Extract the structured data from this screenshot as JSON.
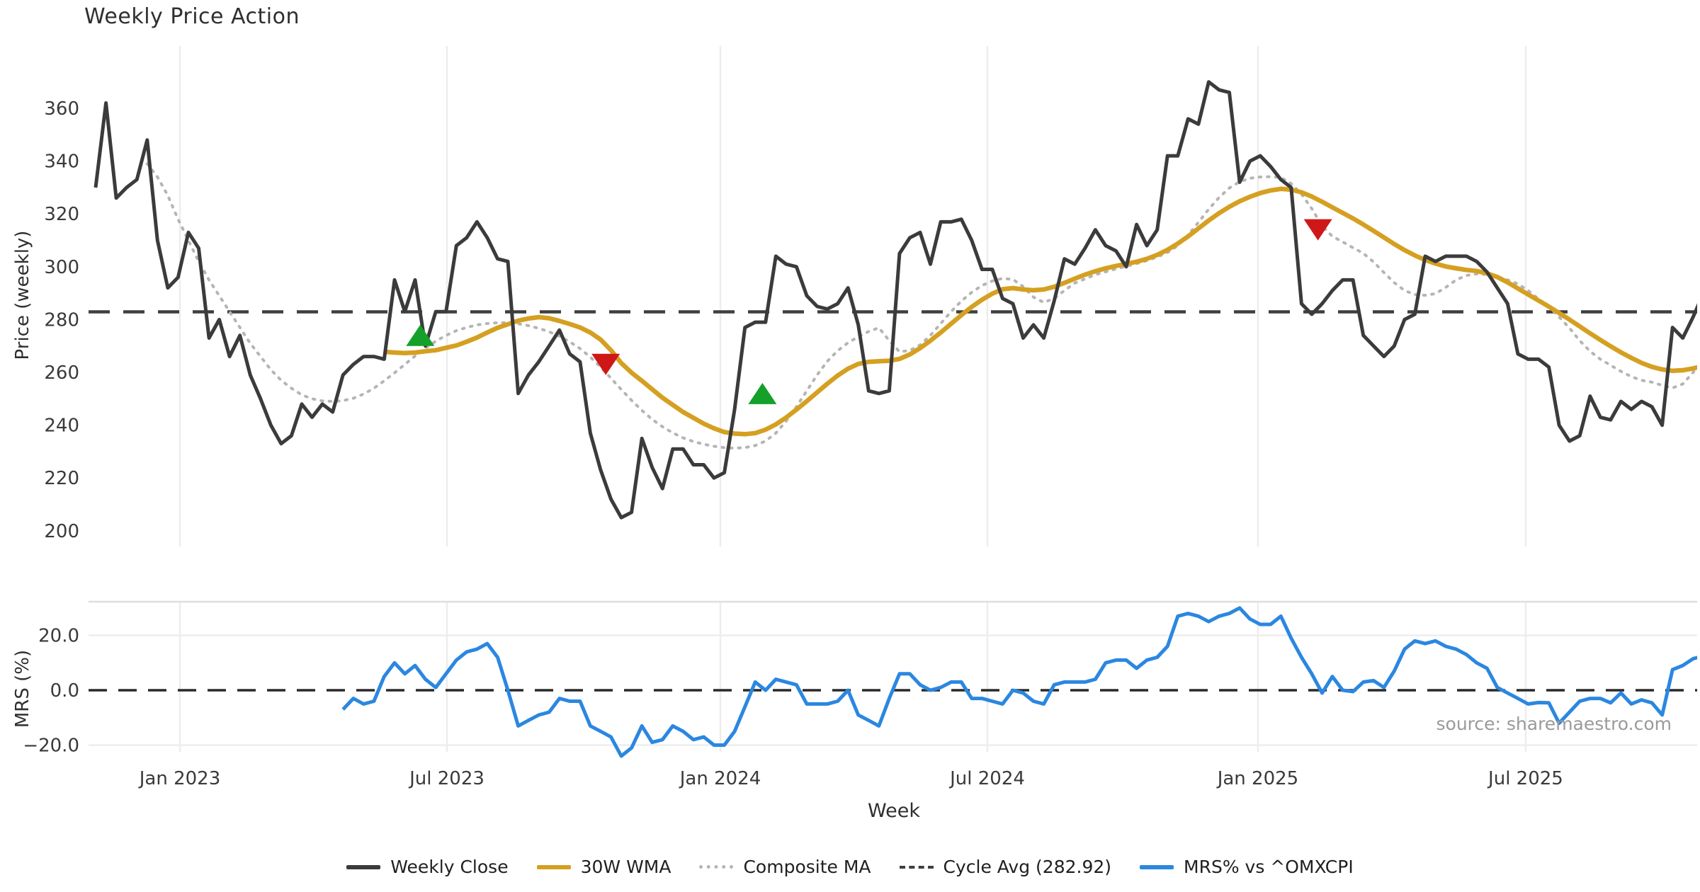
{
  "title": "Weekly Price Action",
  "source_text": "source: sharemaestro.com",
  "colors": {
    "close": "#3b3b3b",
    "wma": "#d5a021",
    "composite": "#b5b5b5",
    "cycle": "#3f3f3f",
    "mrs": "#2b87e0",
    "buy": "#15a02a",
    "sell": "#cf1717",
    "grid": "#ededed",
    "panel_border": "#dedede",
    "tick_text": "#3a3a3a",
    "zero_line": "#2a2a2a"
  },
  "legend": [
    {
      "label": "Weekly Close",
      "color": "#3b3b3b",
      "style": "solid"
    },
    {
      "label": "30W WMA",
      "color": "#d5a021",
      "style": "solid"
    },
    {
      "label": "Composite MA",
      "color": "#b5b5b5",
      "style": "dotted"
    },
    {
      "label": "Cycle Avg (282.92)",
      "color": "#3f3f3f",
      "style": "dashed"
    },
    {
      "label": "MRS% vs ^OMXCPI",
      "color": "#2b87e0",
      "style": "solid"
    }
  ],
  "chart_data": [
    {
      "type": "line",
      "panel": "price",
      "title": "Weekly Price Action",
      "ylabel": "Price (weekly)",
      "xlabel": "Week",
      "ylim": [
        194,
        383
      ],
      "grid": "vertical-only",
      "yticks": [
        360,
        340,
        320,
        300,
        280,
        260,
        240,
        220,
        200
      ],
      "xticks": [
        {
          "label": "Jan 2023",
          "week": 8.18
        },
        {
          "label": "Jul 2023",
          "week": 34.09
        },
        {
          "label": "Jan 2024",
          "week": 60.62
        },
        {
          "label": "Jul 2024",
          "week": 86.53
        },
        {
          "label": "Jan 2025",
          "week": 112.78
        },
        {
          "label": "Jul 2025",
          "week": 138.76
        }
      ],
      "cycle_avg": 282.92,
      "series": [
        {
          "name": "Weekly Close",
          "start_week": 0,
          "values": [
            330,
            362,
            326,
            330,
            333,
            348,
            310,
            292,
            296,
            313,
            307,
            273,
            280,
            266,
            274,
            259,
            250,
            240,
            233,
            236,
            248,
            243,
            248,
            245,
            259,
            263,
            266,
            266,
            265,
            295,
            283,
            295,
            270,
            283,
            283,
            308,
            311,
            317,
            311,
            303,
            302,
            252,
            259,
            264,
            270,
            276,
            267,
            264,
            237,
            223,
            212,
            205,
            207,
            235,
            224,
            216,
            231,
            231,
            225,
            225,
            220,
            222,
            246,
            277,
            279,
            279,
            304,
            301,
            300,
            289,
            285,
            284,
            286,
            292,
            278,
            253,
            252,
            253,
            305,
            311,
            313,
            301,
            317,
            317,
            318,
            310,
            299,
            299,
            288,
            286,
            273,
            278,
            273,
            287,
            303,
            301,
            307,
            314,
            308,
            306,
            300,
            316,
            308,
            314,
            342,
            342,
            356,
            354,
            370,
            367,
            366,
            332,
            340,
            342,
            338,
            333,
            330,
            286,
            282,
            286,
            291,
            295,
            295,
            274,
            270,
            266,
            270,
            280,
            282,
            304,
            302,
            304,
            304,
            304,
            302,
            298,
            292,
            286,
            267,
            265,
            265,
            262,
            240,
            234,
            236,
            251,
            243,
            242,
            249,
            246,
            249,
            247,
            240,
            277,
            273,
            281,
            290
          ]
        },
        {
          "name": "30W WMA",
          "start_week": 28,
          "values": [
            267.8,
            267.5,
            267.3,
            267.5,
            268,
            268.4,
            269.3,
            270.2,
            271.6,
            273.2,
            275.1,
            276.9,
            278.2,
            279.6,
            280.4,
            280.9,
            280.5,
            279.5,
            278.3,
            277,
            275.1,
            272.4,
            268.4,
            263.5,
            259.9,
            256.8,
            253.6,
            250.4,
            247.7,
            245,
            242.8,
            240.6,
            238.8,
            237.4,
            236.8,
            236.6,
            237,
            238.3,
            240.3,
            242.9,
            245.9,
            249.1,
            252.4,
            255.7,
            258.8,
            261.4,
            263.2,
            264,
            264.2,
            264.4,
            265.1,
            266.8,
            269.2,
            272,
            275.1,
            278.4,
            281.7,
            284.8,
            287.5,
            289.8,
            291.5,
            291.9,
            291.4,
            291.1,
            291.4,
            292.4,
            293.9,
            295.5,
            297,
            298.3,
            299.4,
            300.3,
            301.1,
            301.9,
            303,
            304.5,
            306.4,
            308.8,
            311.5,
            314.5,
            317.5,
            320.3,
            322.7,
            324.8,
            326.5,
            327.9,
            328.9,
            329.5,
            329.2,
            328.2,
            326.6,
            324.6,
            322.5,
            320.4,
            318.3,
            316,
            313.6,
            311.1,
            308.6,
            306.3,
            304.3,
            302.6,
            301.2,
            300.1,
            299.4,
            298.8,
            298.4,
            297.5,
            296.1,
            294.1,
            291.8,
            289.5,
            287.2,
            284.9,
            282.5,
            280,
            277.4,
            274.8,
            272.3,
            269.9,
            267.6,
            265.5,
            263.6,
            262.1,
            261.1,
            260.6,
            260.8,
            261.5,
            262.4
          ]
        },
        {
          "name": "Composite MA",
          "start_week": 5,
          "values": [
            339,
            334,
            327,
            318,
            310,
            302,
            295,
            289,
            283,
            277,
            271,
            266,
            261,
            257,
            254,
            251.5,
            250,
            249.2,
            249,
            249.3,
            250.2,
            251.8,
            254,
            256.8,
            259.8,
            263,
            266.2,
            269.2,
            271.8,
            274,
            275.8,
            277,
            278,
            278.5,
            278.8,
            278.8,
            278.4,
            277.7,
            276.7,
            275.4,
            273.7,
            271.6,
            269,
            265.8,
            262,
            257.8,
            253.5,
            249.4,
            245.6,
            242.2,
            239.4,
            237.1,
            235.2,
            233.8,
            232.8,
            232,
            231.5,
            231.3,
            231.5,
            232.3,
            234,
            237,
            241.5,
            247,
            253,
            259,
            264.2,
            268.2,
            271.2,
            273.5,
            275.5,
            276.9,
            272,
            267.8,
            268.3,
            270.4,
            274,
            278.5,
            283,
            287,
            290.3,
            292.9,
            294.6,
            295.6,
            295.2,
            292.5,
            288.5,
            286.5,
            288,
            291,
            293.8,
            295.4,
            297,
            298.1,
            299.2,
            300.2,
            301.2,
            302.3,
            303.7,
            305.4,
            308,
            312,
            316.8,
            321.8,
            326.2,
            329.8,
            332.2,
            333.5,
            334,
            334.1,
            333.8,
            331.5,
            327.5,
            322,
            315.5,
            311.5,
            309.4,
            307.2,
            305.1,
            301.8,
            297.8,
            294,
            291,
            289.5,
            289.2,
            289.8,
            292.2,
            295,
            296.7,
            297.3,
            297.1,
            296.2,
            295,
            293.5,
            291,
            287.8,
            284.9,
            281,
            276.8,
            272,
            268,
            265,
            262.7,
            260.4,
            258.4,
            257,
            256.3,
            255.1,
            254.1,
            255.6,
            260,
            265,
            268
          ]
        }
      ],
      "signals": [
        {
          "type": "buy",
          "week": 31.5,
          "value": 274
        },
        {
          "type": "sell",
          "week": 49.5,
          "value": 263
        },
        {
          "type": "buy",
          "week": 64.7,
          "value": 252
        },
        {
          "type": "sell",
          "week": 118.6,
          "value": 314
        }
      ]
    },
    {
      "type": "line",
      "panel": "mrs",
      "ylabel": "MRS (%)",
      "ylim": [
        -22.5,
        32.3
      ],
      "zero_line": 0,
      "yticks": [
        {
          "label": "20.0",
          "value": 20
        },
        {
          "label": "0.0",
          "value": 0
        },
        {
          "label": "−20.0",
          "value": -20
        }
      ],
      "series": [
        {
          "name": "MRS% vs ^OMXCPI",
          "start_week": 24,
          "values": [
            -7,
            -3,
            -5,
            -4,
            5,
            10,
            6,
            9,
            4,
            1,
            6,
            11,
            14,
            15,
            17,
            12,
            0,
            -13,
            -11,
            -9,
            -8,
            -3,
            -4,
            -4,
            -13,
            -15,
            -17,
            -24,
            -21,
            -13,
            -19,
            -18,
            -13,
            -15,
            -18,
            -17,
            -20,
            -20,
            -15,
            -6,
            3,
            0,
            4,
            3,
            2,
            -5,
            -5,
            -5,
            -4,
            0,
            -9,
            -11,
            -13,
            -3,
            6,
            6,
            2,
            0,
            1,
            3,
            3,
            -3,
            -3,
            -4,
            -5,
            0,
            -1,
            -4,
            -5,
            2,
            3,
            3,
            3,
            4,
            10,
            11,
            11,
            8,
            11,
            12,
            16,
            27,
            28,
            27,
            25,
            27,
            28,
            30,
            26,
            24,
            24,
            27,
            19,
            12,
            6,
            -1,
            5,
            0,
            -0.5,
            3,
            3.5,
            1,
            7,
            15,
            18,
            17,
            18,
            16,
            15,
            13,
            10,
            8,
            1,
            -1,
            -3,
            -5,
            -4.5,
            -4.6,
            -12,
            -8,
            -4,
            -3,
            -3,
            -4.6,
            -1,
            -5,
            -3.5,
            -4.6,
            -9,
            7.5,
            9,
            11.5,
            12.5
          ]
        }
      ]
    }
  ],
  "axis": {
    "price_ylabel": "Price (weekly)",
    "mrs_ylabel": "MRS (%)",
    "xlabel": "Week"
  }
}
